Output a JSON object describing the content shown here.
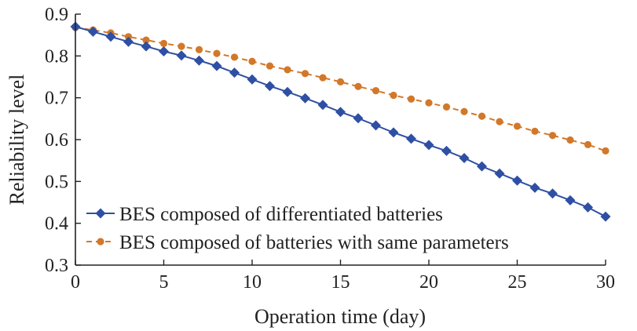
{
  "chart_data": {
    "type": "line",
    "xlabel": "Operation time (day)",
    "ylabel": "Reliability level",
    "xlim": [
      0,
      30
    ],
    "ylim": [
      0.3,
      0.9
    ],
    "xticks": [
      "0",
      "5",
      "10",
      "15",
      "20",
      "25",
      "30"
    ],
    "yticks": [
      "0.3",
      "0.4",
      "0.5",
      "0.6",
      "0.7",
      "0.8",
      "0.9"
    ],
    "grid": false,
    "legend_position": "bottom-left",
    "x": [
      0,
      1,
      2,
      3,
      4,
      5,
      6,
      7,
      8,
      9,
      10,
      11,
      12,
      13,
      14,
      15,
      16,
      17,
      18,
      19,
      20,
      21,
      22,
      23,
      24,
      25,
      26,
      27,
      28,
      29,
      30
    ],
    "series": [
      {
        "name": "BES composed of differentiated batteries",
        "color": "#2e4fa3",
        "marker": "diamond",
        "line_style": "solid",
        "values": [
          0.87,
          0.858,
          0.846,
          0.834,
          0.823,
          0.811,
          0.801,
          0.789,
          0.776,
          0.76,
          0.744,
          0.728,
          0.714,
          0.699,
          0.683,
          0.666,
          0.651,
          0.634,
          0.617,
          0.602,
          0.587,
          0.573,
          0.556,
          0.536,
          0.519,
          0.502,
          0.485,
          0.471,
          0.455,
          0.438,
          0.416
        ]
      },
      {
        "name": "BES composed of batteries with same parameters",
        "color": "#d2782a",
        "marker": "circle",
        "line_style": "dashed",
        "values": [
          0.868,
          0.862,
          0.855,
          0.846,
          0.838,
          0.83,
          0.823,
          0.815,
          0.806,
          0.797,
          0.787,
          0.776,
          0.767,
          0.758,
          0.748,
          0.738,
          0.727,
          0.717,
          0.706,
          0.697,
          0.688,
          0.678,
          0.667,
          0.656,
          0.643,
          0.632,
          0.62,
          0.61,
          0.599,
          0.588,
          0.573
        ]
      }
    ]
  }
}
